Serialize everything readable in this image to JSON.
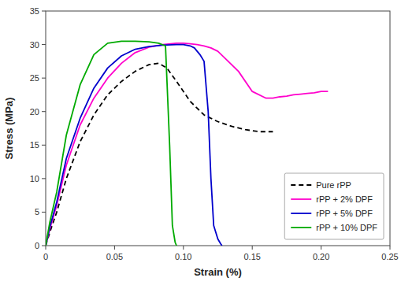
{
  "chart_data": {
    "type": "line",
    "xlabel": "Strain (%)",
    "ylabel": "Stress (MPa)",
    "xlim": [
      0,
      0.25
    ],
    "ylim": [
      0,
      35
    ],
    "xticks": [
      0,
      0.05,
      {
        "value": 0.1,
        "label": "0.10"
      },
      0.15,
      {
        "value": 0.2,
        "label": "0.20"
      },
      0.25
    ],
    "yticks": [
      0,
      5,
      10,
      15,
      20,
      25,
      30,
      35
    ],
    "grid": false,
    "legend": "lower right",
    "series": [
      {
        "name": "Pure rPP",
        "color": "#000000",
        "line_style": "dashed",
        "x": [
          0,
          0.003,
          0.008,
          0.015,
          0.025,
          0.035,
          0.045,
          0.055,
          0.065,
          0.075,
          0.082,
          0.088,
          0.095,
          0.105,
          0.115,
          0.125,
          0.135,
          0.145,
          0.155,
          0.165
        ],
        "values": [
          0,
          2.0,
          5.0,
          10.0,
          15.5,
          19.5,
          22.5,
          24.5,
          26.0,
          27.0,
          27.2,
          26.5,
          24.5,
          21.5,
          19.5,
          18.5,
          17.8,
          17.3,
          17.0,
          17.0
        ]
      },
      {
        "name": "rPP + 2% DPF",
        "color": "#FF00CC",
        "line_style": "solid",
        "x": [
          0,
          0.003,
          0.008,
          0.015,
          0.025,
          0.035,
          0.045,
          0.055,
          0.065,
          0.075,
          0.085,
          0.095,
          0.1,
          0.105,
          0.11,
          0.115,
          0.12,
          0.125,
          0.13,
          0.14,
          0.15,
          0.16,
          0.165,
          0.17,
          0.175,
          0.18,
          0.185,
          0.19,
          0.195,
          0.2,
          0.205
        ],
        "values": [
          0,
          2.5,
          6.0,
          12.0,
          18.0,
          22.0,
          25.0,
          27.2,
          28.8,
          29.6,
          30.0,
          30.2,
          30.2,
          30.1,
          30.0,
          29.8,
          29.5,
          29.0,
          28.0,
          26.0,
          23.0,
          22.0,
          22.0,
          22.2,
          22.3,
          22.5,
          22.6,
          22.7,
          22.8,
          23.0,
          23.0
        ]
      },
      {
        "name": "rPP + 5% DPF",
        "color": "#0000CC",
        "line_style": "solid",
        "x": [
          0,
          0.003,
          0.008,
          0.015,
          0.025,
          0.035,
          0.045,
          0.055,
          0.065,
          0.075,
          0.085,
          0.095,
          0.1,
          0.105,
          0.108,
          0.11,
          0.112,
          0.115,
          0.118,
          0.12,
          0.122,
          0.125,
          0.127,
          0.128
        ],
        "values": [
          0,
          2.8,
          6.5,
          13.0,
          19.0,
          23.5,
          26.5,
          28.3,
          29.3,
          29.7,
          29.9,
          30.0,
          30.0,
          29.8,
          29.5,
          29.0,
          28.5,
          27.5,
          20.0,
          10.0,
          3.0,
          1.0,
          0.3,
          0
        ]
      },
      {
        "name": "rPP + 10% DPF",
        "color": "#00AA00",
        "line_style": "solid",
        "x": [
          0,
          0.003,
          0.008,
          0.015,
          0.025,
          0.035,
          0.045,
          0.055,
          0.065,
          0.075,
          0.082,
          0.087,
          0.09,
          0.092,
          0.094,
          0.095
        ],
        "values": [
          0,
          3.5,
          8.0,
          16.5,
          24.0,
          28.5,
          30.2,
          30.5,
          30.5,
          30.4,
          30.2,
          29.8,
          15.0,
          3.0,
          0.5,
          0
        ]
      }
    ]
  }
}
